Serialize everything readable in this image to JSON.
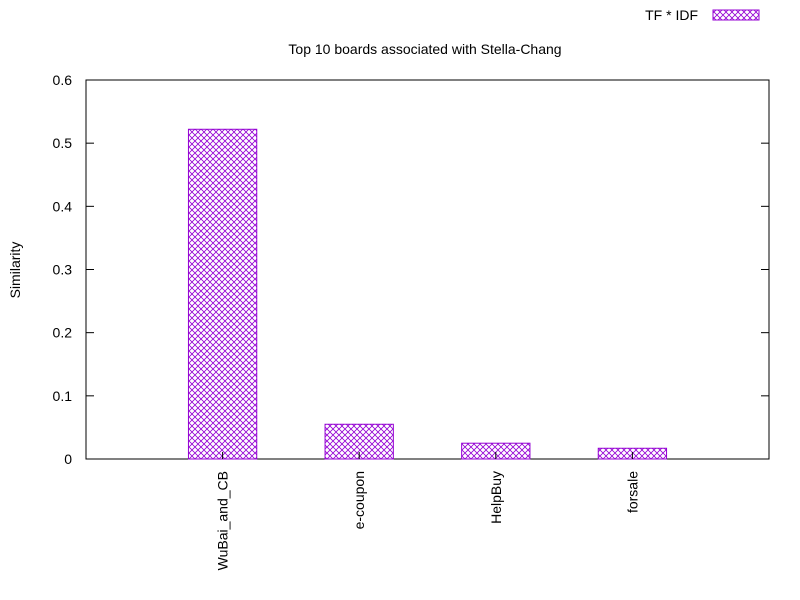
{
  "chart_data": {
    "type": "bar",
    "title": "Top 10 boards associated with Stella-Chang",
    "xlabel": "",
    "ylabel": "Similarity",
    "categories": [
      "WuBai_and_CB",
      "e-coupon",
      "HelpBuy",
      "forsale"
    ],
    "series": [
      {
        "name": "TF * IDF",
        "values": [
          0.522,
          0.055,
          0.025,
          0.017
        ]
      }
    ],
    "ylim": [
      0,
      0.6
    ],
    "yticks": [
      "0",
      "0.1",
      "0.2",
      "0.3",
      "0.4",
      "0.5",
      "0.6"
    ],
    "grid": false,
    "legend": "top-right",
    "colors": {
      "bar": "#9400d3",
      "axis": "#000000"
    }
  }
}
